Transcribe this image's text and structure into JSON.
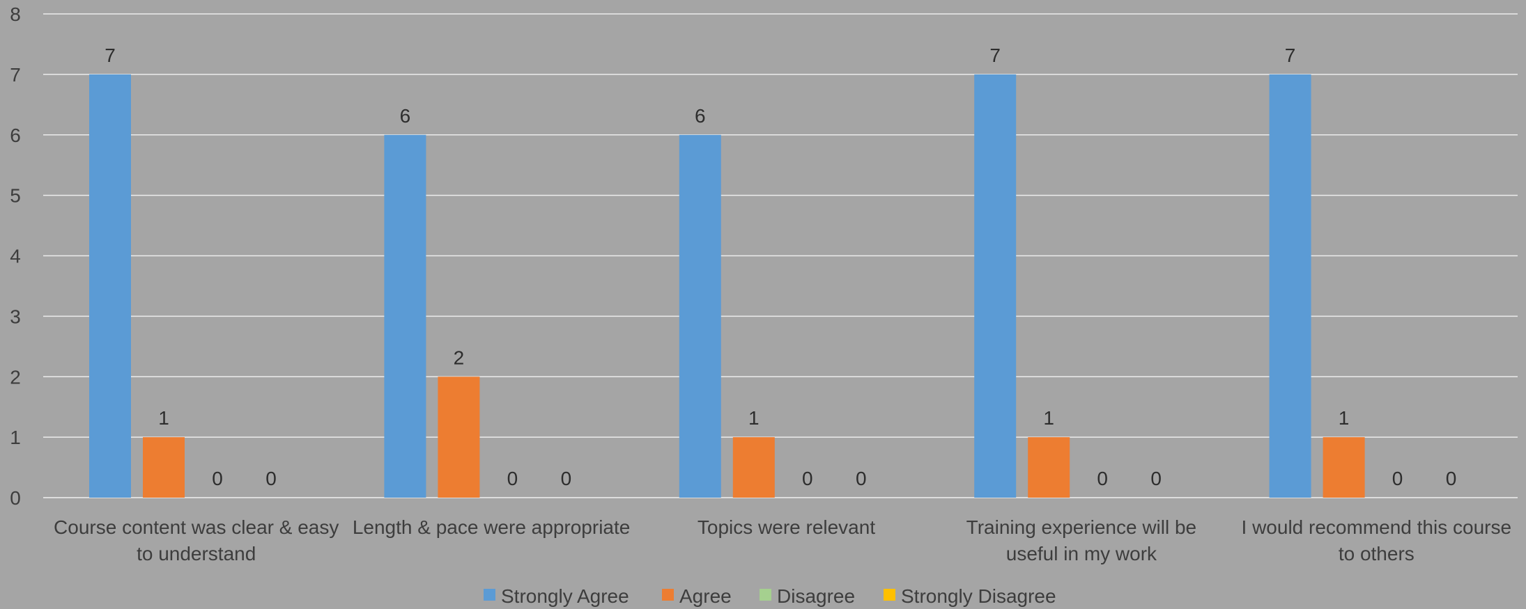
{
  "chart_data": {
    "type": "bar",
    "title": "",
    "xlabel": "",
    "ylabel": "",
    "ylim": [
      0,
      8
    ],
    "yticks": [
      "0",
      "1",
      "2",
      "3",
      "4",
      "5",
      "6",
      "7",
      "8"
    ],
    "grid": true,
    "legend_position": "bottom",
    "categories": [
      [
        "Course content was clear & easy",
        "to understand"
      ],
      [
        "Length & pace were appropriate"
      ],
      [
        "Topics were relevant"
      ],
      [
        "Training experience will be",
        "useful in my work"
      ],
      [
        "I would recommend this course",
        "to others"
      ]
    ],
    "series": [
      {
        "name": "Strongly Agree",
        "color": "#5b9bd5",
        "values": [
          7,
          6,
          6,
          7,
          7
        ]
      },
      {
        "name": "Agree",
        "color": "#ed7d31",
        "values": [
          1,
          2,
          1,
          1,
          1
        ]
      },
      {
        "name": "Disagree",
        "color": "#a5d08f",
        "values": [
          0,
          0,
          0,
          0,
          0
        ]
      },
      {
        "name": "Strongly Disagree",
        "color": "#ffc000",
        "values": [
          0,
          0,
          0,
          0,
          0
        ]
      }
    ]
  }
}
